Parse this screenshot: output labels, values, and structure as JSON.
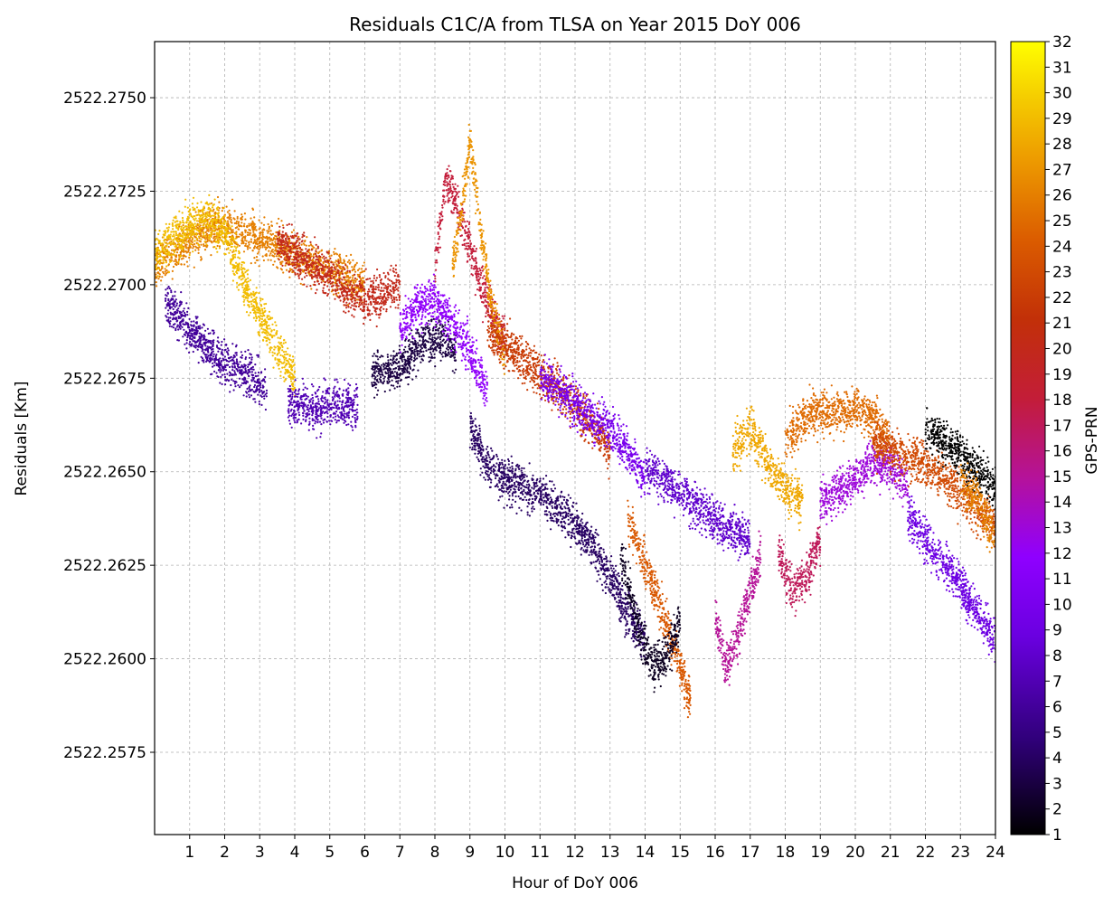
{
  "chart_data": {
    "type": "scatter",
    "title": "Residuals C1C/A from TLSA on Year 2015 DoY 006",
    "xlabel": "Hour of DoY 006",
    "ylabel": "Residuals [Km]",
    "xlim": [
      0,
      24
    ],
    "ylim": [
      2522.2553,
      2522.2765
    ],
    "x_ticks": [
      1,
      2,
      3,
      4,
      5,
      6,
      7,
      8,
      9,
      10,
      11,
      12,
      13,
      14,
      15,
      16,
      17,
      18,
      19,
      20,
      21,
      22,
      23,
      24
    ],
    "x_tick_labels": [
      "1",
      "2",
      "3",
      "4",
      "5",
      "6",
      "7",
      "8",
      "9",
      "10",
      "11",
      "12",
      "13",
      "14",
      "15",
      "16",
      "17",
      "18",
      "19",
      "20",
      "21",
      "22",
      "23",
      "24"
    ],
    "y_ticks": [
      2522.2575,
      2522.26,
      2522.2625,
      2522.265,
      2522.2675,
      2522.27,
      2522.2725,
      2522.275
    ],
    "y_tick_labels": [
      "2522.2575",
      "2522.2600",
      "2522.2625",
      "2522.2650",
      "2522.2675",
      "2522.2700",
      "2522.2725",
      "2522.2750"
    ],
    "grid": true,
    "colorbar": {
      "label": "GPS-PRN",
      "min": 1,
      "max": 32,
      "colormap": "gnuplot",
      "ticks": [
        1,
        2,
        3,
        4,
        5,
        6,
        7,
        8,
        9,
        10,
        11,
        12,
        13,
        14,
        15,
        16,
        17,
        18,
        19,
        20,
        21,
        22,
        23,
        24,
        25,
        26,
        27,
        28,
        29,
        30,
        31,
        32
      ],
      "tick_labels": [
        "1",
        "2",
        "3",
        "4",
        "5",
        "6",
        "7",
        "8",
        "9",
        "10",
        "11",
        "12",
        "13",
        "14",
        "15",
        "16",
        "17",
        "18",
        "19",
        "20",
        "21",
        "22",
        "23",
        "24",
        "25",
        "26",
        "27",
        "28",
        "29",
        "30",
        "31",
        "32"
      ]
    },
    "series": [
      {
        "prn": 26,
        "x": [
          0.0,
          0.5,
          1.0,
          1.5,
          2.0,
          2.5,
          3.0,
          3.5,
          4.0,
          4.5,
          5.0,
          5.5,
          6.0
        ],
        "y": [
          2522.2705,
          2522.2708,
          2522.2712,
          2522.2715,
          2522.2716,
          2522.2714,
          2522.2712,
          2522.271,
          2522.2708,
          2522.2706,
          2522.2704,
          2522.2702,
          2522.27
        ]
      },
      {
        "prn": 29,
        "x": [
          0.0,
          0.5,
          1.0,
          1.5,
          2.0,
          2.5,
          3.0,
          3.5,
          4.0
        ],
        "y": [
          2522.2708,
          2522.2712,
          2522.2716,
          2522.2718,
          2522.2714,
          2522.2702,
          2522.2692,
          2522.2683,
          2522.2675
        ]
      },
      {
        "prn": 6,
        "x": [
          0.3,
          0.8,
          1.3,
          1.8,
          2.3,
          2.8,
          3.2
        ],
        "y": [
          2522.2695,
          2522.269,
          2522.2685,
          2522.268,
          2522.2678,
          2522.2675,
          2522.2672
        ]
      },
      {
        "prn": 7,
        "x": [
          3.8,
          4.2,
          4.6,
          5.0,
          5.4,
          5.8
        ],
        "y": [
          2522.2668,
          2522.2668,
          2522.2667,
          2522.2668,
          2522.2668,
          2522.2667
        ]
      },
      {
        "prn": 20,
        "x": [
          3.5,
          4.0,
          4.5,
          5.0,
          5.5,
          6.0,
          6.5,
          7.0
        ],
        "y": [
          2522.2712,
          2522.2708,
          2522.2705,
          2522.2702,
          2522.2698,
          2522.2696,
          2522.2697,
          2522.27
        ]
      },
      {
        "prn": 3,
        "x": [
          6.2,
          6.6,
          7.0,
          7.4,
          7.8,
          8.2,
          8.6
        ],
        "y": [
          2522.2676,
          2522.2677,
          2522.2678,
          2522.2682,
          2522.2686,
          2522.2686,
          2522.2682
        ]
      },
      {
        "prn": 18,
        "x": [
          8.0,
          8.3,
          8.6,
          9.0,
          9.5,
          10.0
        ],
        "y": [
          2522.2705,
          2522.2728,
          2522.2722,
          2522.271,
          2522.2695,
          2522.2685
        ]
      },
      {
        "prn": 27,
        "x": [
          8.5,
          8.8,
          9.0,
          9.3,
          9.6,
          10.0
        ],
        "y": [
          2522.2705,
          2522.2722,
          2522.2738,
          2522.2715,
          2522.2695,
          2522.268
        ]
      },
      {
        "prn": 12,
        "x": [
          7.0,
          7.5,
          8.0,
          8.5,
          9.0,
          9.5
        ],
        "y": [
          2522.2688,
          2522.2694,
          2522.2696,
          2522.269,
          2522.2682,
          2522.2672
        ]
      },
      {
        "prn": 22,
        "x": [
          9.5,
          10.0,
          10.5,
          11.0,
          11.5,
          12.0,
          12.5,
          13.0
        ],
        "y": [
          2522.2688,
          2522.2684,
          2522.268,
          2522.2676,
          2522.2672,
          2522.2668,
          2522.2662,
          2522.2656
        ]
      },
      {
        "prn": 4,
        "x": [
          9.0,
          9.5,
          10.0,
          10.5,
          11.0,
          11.5,
          12.0,
          12.5,
          13.0,
          13.5,
          14.0
        ],
        "y": [
          2522.2662,
          2522.2652,
          2522.2648,
          2522.2646,
          2522.2644,
          2522.264,
          2522.2636,
          2522.263,
          2522.2622,
          2522.2612,
          2522.2605
        ]
      },
      {
        "prn": 10,
        "x": [
          11.0,
          11.5,
          12.0,
          12.5,
          13.0,
          13.5,
          14.0
        ],
        "y": [
          2522.2676,
          2522.2672,
          2522.2668,
          2522.2664,
          2522.2662,
          2522.2655,
          2522.2648
        ]
      },
      {
        "prn": 24,
        "x": [
          13.5,
          14.0,
          14.5,
          15.0,
          15.3
        ],
        "y": [
          2522.2638,
          2522.2625,
          2522.2612,
          2522.2598,
          2522.2588
        ]
      },
      {
        "prn": 2,
        "x": [
          13.3,
          13.8,
          14.2,
          14.6,
          15.0
        ],
        "y": [
          2522.2628,
          2522.2608,
          2522.2598,
          2522.26,
          2522.261
        ]
      },
      {
        "prn": 8,
        "x": [
          14.0,
          14.5,
          15.0,
          15.5,
          16.0,
          16.5,
          17.0
        ],
        "y": [
          2522.2652,
          2522.2648,
          2522.2645,
          2522.2641,
          2522.2637,
          2522.2634,
          2522.2632
        ]
      },
      {
        "prn": 15,
        "x": [
          16.0,
          16.3,
          16.6,
          17.0,
          17.3
        ],
        "y": [
          2522.2612,
          2522.2598,
          2522.2605,
          2522.2618,
          2522.2628
        ]
      },
      {
        "prn": 28,
        "x": [
          16.5,
          17.0,
          17.5,
          18.0,
          18.5
        ],
        "y": [
          2522.2655,
          2522.2662,
          2522.2652,
          2522.2645,
          2522.2642
        ]
      },
      {
        "prn": 17,
        "x": [
          17.8,
          18.2,
          18.6,
          19.0
        ],
        "y": [
          2522.2628,
          2522.2618,
          2522.2622,
          2522.2632
        ]
      },
      {
        "prn": 25,
        "x": [
          18.0,
          18.5,
          19.0,
          19.5,
          20.0,
          20.5,
          21.0
        ],
        "y": [
          2522.2658,
          2522.2664,
          2522.2666,
          2522.2666,
          2522.2667,
          2522.2665,
          2522.2658
        ]
      },
      {
        "prn": 13,
        "x": [
          19.0,
          19.5,
          20.0,
          20.5,
          21.0,
          21.5
        ],
        "y": [
          2522.2642,
          2522.2645,
          2522.2648,
          2522.2652,
          2522.2652,
          2522.2646
        ]
      },
      {
        "prn": 23,
        "x": [
          20.5,
          21.0,
          21.5,
          22.0,
          22.5,
          23.0,
          23.5,
          24.0
        ],
        "y": [
          2522.2658,
          2522.2656,
          2522.2654,
          2522.2652,
          2522.2648,
          2522.2644,
          2522.264,
          2522.2636
        ]
      },
      {
        "prn": 1,
        "x": [
          22.0,
          22.5,
          23.0,
          23.5,
          24.0
        ],
        "y": [
          2522.2662,
          2522.2658,
          2522.2655,
          2522.265,
          2522.2645
        ]
      },
      {
        "prn": 9,
        "x": [
          21.5,
          22.0,
          22.5,
          23.0,
          23.5,
          24.0
        ],
        "y": [
          2522.2638,
          2522.2632,
          2522.2626,
          2522.262,
          2522.2612,
          2522.2604
        ]
      },
      {
        "prn": 26,
        "x": [
          23.0,
          23.5,
          24.0
        ],
        "y": [
          2522.2648,
          2522.2642,
          2522.2632
        ]
      }
    ]
  }
}
